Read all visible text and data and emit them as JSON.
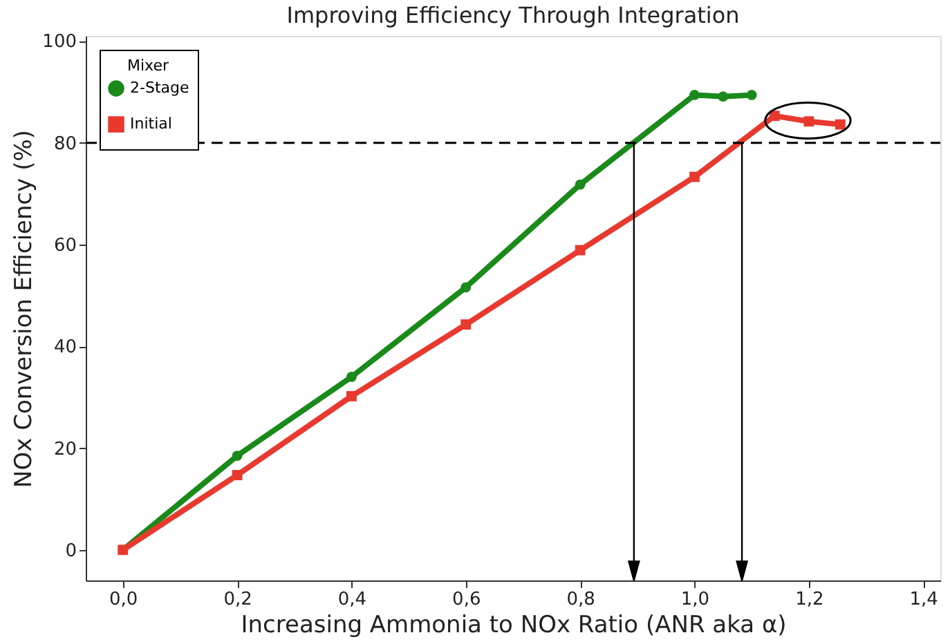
{
  "chart_data": {
    "type": "line",
    "title": "Improving Efficiency Through Integration",
    "xlabel": "Increasing Ammonia to NOx Ratio (ANR aka α)",
    "ylabel": "NOx Conversion Efficiency (%)",
    "legend_title": "Mixer",
    "legend": "top left",
    "series": [
      {
        "name": "2-Stage",
        "color": "#1a8a1a",
        "marker": "circle",
        "x": [
          0,
          0.2,
          0.4,
          0.6,
          0.8,
          1.0,
          1.05,
          1.1
        ],
        "values": [
          0,
          18.5,
          34,
          51.6,
          71.8,
          89.4,
          89.1,
          89.4
        ]
      },
      {
        "name": "Initial",
        "color": "#e8392f",
        "marker": "square",
        "x": [
          0,
          0.2,
          0.4,
          0.6,
          0.8,
          1.0,
          1.14,
          1.2,
          1.255
        ],
        "values": [
          0,
          14.7,
          30.2,
          44.3,
          58.9,
          73.3,
          85.3,
          84.2,
          83.6
        ]
      }
    ],
    "xlim": [
      -0.065,
      1.43
    ],
    "ylim": [
      -6,
      101
    ],
    "xticks": [
      {
        "value": 0,
        "label": "0,0"
      },
      {
        "value": 0.2,
        "label": "0,2"
      },
      {
        "value": 0.4,
        "label": "0,4"
      },
      {
        "value": 0.6,
        "label": "0,6"
      },
      {
        "value": 0.8,
        "label": "0,8"
      },
      {
        "value": 1.0,
        "label": "1,0"
      },
      {
        "value": 1.2,
        "label": "1,2"
      },
      {
        "value": 1.4,
        "label": "1,4"
      }
    ],
    "yticks": [
      0,
      20,
      40,
      60,
      80,
      100
    ],
    "ref_lines": [
      {
        "axis": "y",
        "value": 80,
        "line_style": "dashed",
        "color": "#000000"
      },
      {
        "axis": "x",
        "value": 0.894,
        "color": "#000000"
      },
      {
        "axis": "x",
        "value": 1.083,
        "color": "#000000"
      }
    ],
    "grid": false,
    "line_style": "solid"
  }
}
